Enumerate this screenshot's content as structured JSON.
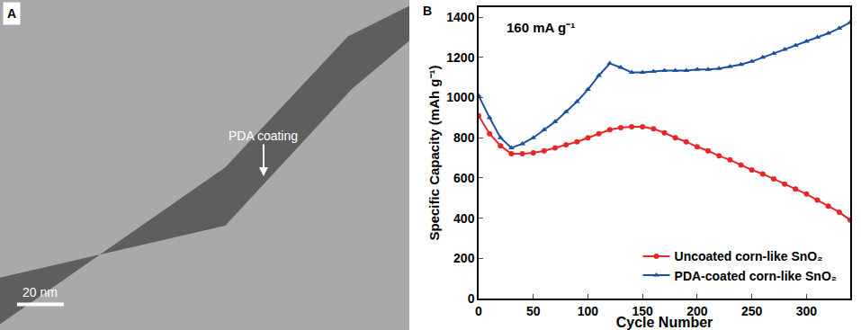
{
  "image_panel": {
    "label": "A",
    "annotation": "PDA coating",
    "scale_bar": "20 nm"
  },
  "chart_data": {
    "type": "scatter",
    "panel_label": "B",
    "annotations": [
      "160 mA g⁻¹"
    ],
    "xlabel": "Cycle Number",
    "ylabel": "Specific Capacity (mAh g⁻¹)",
    "x": [
      0,
      10,
      20,
      30,
      40,
      50,
      60,
      70,
      80,
      90,
      100,
      110,
      120,
      130,
      140,
      150,
      160,
      170,
      180,
      190,
      200,
      210,
      220,
      230,
      240,
      250,
      260,
      270,
      280,
      290,
      300,
      310,
      320,
      330,
      340
    ],
    "series": [
      {
        "name": "Uncoated corn-like SnO₂",
        "color": "#e8262a",
        "marker": "circle",
        "values": [
          910,
          820,
          760,
          720,
          720,
          725,
          735,
          750,
          765,
          780,
          800,
          820,
          840,
          850,
          855,
          855,
          845,
          825,
          800,
          780,
          755,
          735,
          710,
          690,
          665,
          640,
          620,
          595,
          570,
          545,
          520,
          490,
          460,
          430,
          390
        ]
      },
      {
        "name": "PDA-coated corn-like SnO₂",
        "color": "#1b4fa0",
        "marker": "triangle-up",
        "values": [
          1010,
          900,
          800,
          750,
          770,
          800,
          840,
          880,
          930,
          980,
          1040,
          1110,
          1170,
          1150,
          1125,
          1125,
          1130,
          1135,
          1135,
          1135,
          1140,
          1140,
          1145,
          1155,
          1165,
          1180,
          1200,
          1220,
          1240,
          1260,
          1280,
          1300,
          1320,
          1345,
          1375
        ]
      }
    ],
    "xlim": [
      0,
      340
    ],
    "xticks": [
      0,
      50,
      100,
      150,
      200,
      250,
      300
    ],
    "ylim": [
      0,
      1450
    ],
    "yticks": [
      0,
      200,
      400,
      600,
      800,
      1000,
      1200,
      1400
    ],
    "legend": "lower right",
    "grid": false
  }
}
